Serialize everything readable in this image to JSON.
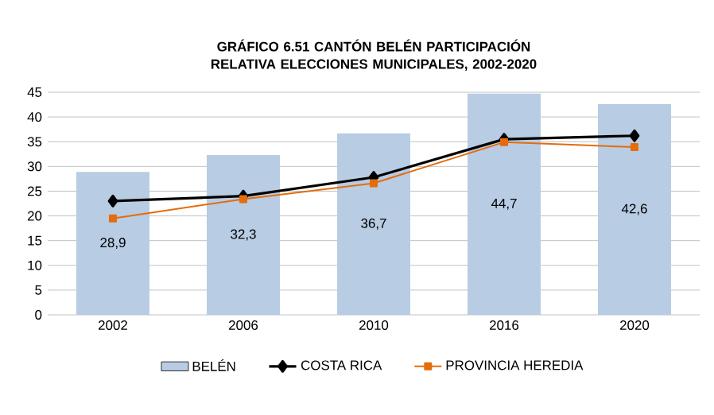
{
  "chart_data": {
    "type": "bar",
    "title": "GRÁFICO 6.51 CANTÓN BELÉN PARTICIPACIÓN RELATIVA ELECCIONES MUNICIPALES, 2002-2020",
    "categories": [
      "2002",
      "2006",
      "2010",
      "2016",
      "2020"
    ],
    "series": [
      {
        "name": "BELÉN",
        "color": "#b8cce4",
        "values": [
          28.9,
          32.3,
          36.7,
          44.7,
          42.6
        ],
        "value_labels": [
          "28,9",
          "32,3",
          "36,7",
          "44,7",
          "42,6"
        ]
      },
      {
        "name": "COSTA RICA",
        "type": "line",
        "color": "#000000",
        "marker": "diamond",
        "values": [
          23.0,
          24.0,
          27.8,
          35.5,
          36.2
        ]
      },
      {
        "name": "PROVINCIA HEREDIA",
        "type": "line",
        "color": "#e46c0a",
        "marker": "square",
        "values": [
          19.5,
          23.4,
          26.6,
          34.9,
          33.9
        ]
      }
    ],
    "ylim": [
      0,
      45
    ],
    "yticks": [
      0,
      5,
      10,
      15,
      20,
      25,
      30,
      35,
      40,
      45
    ],
    "grid": "y",
    "legend": "bottom"
  }
}
